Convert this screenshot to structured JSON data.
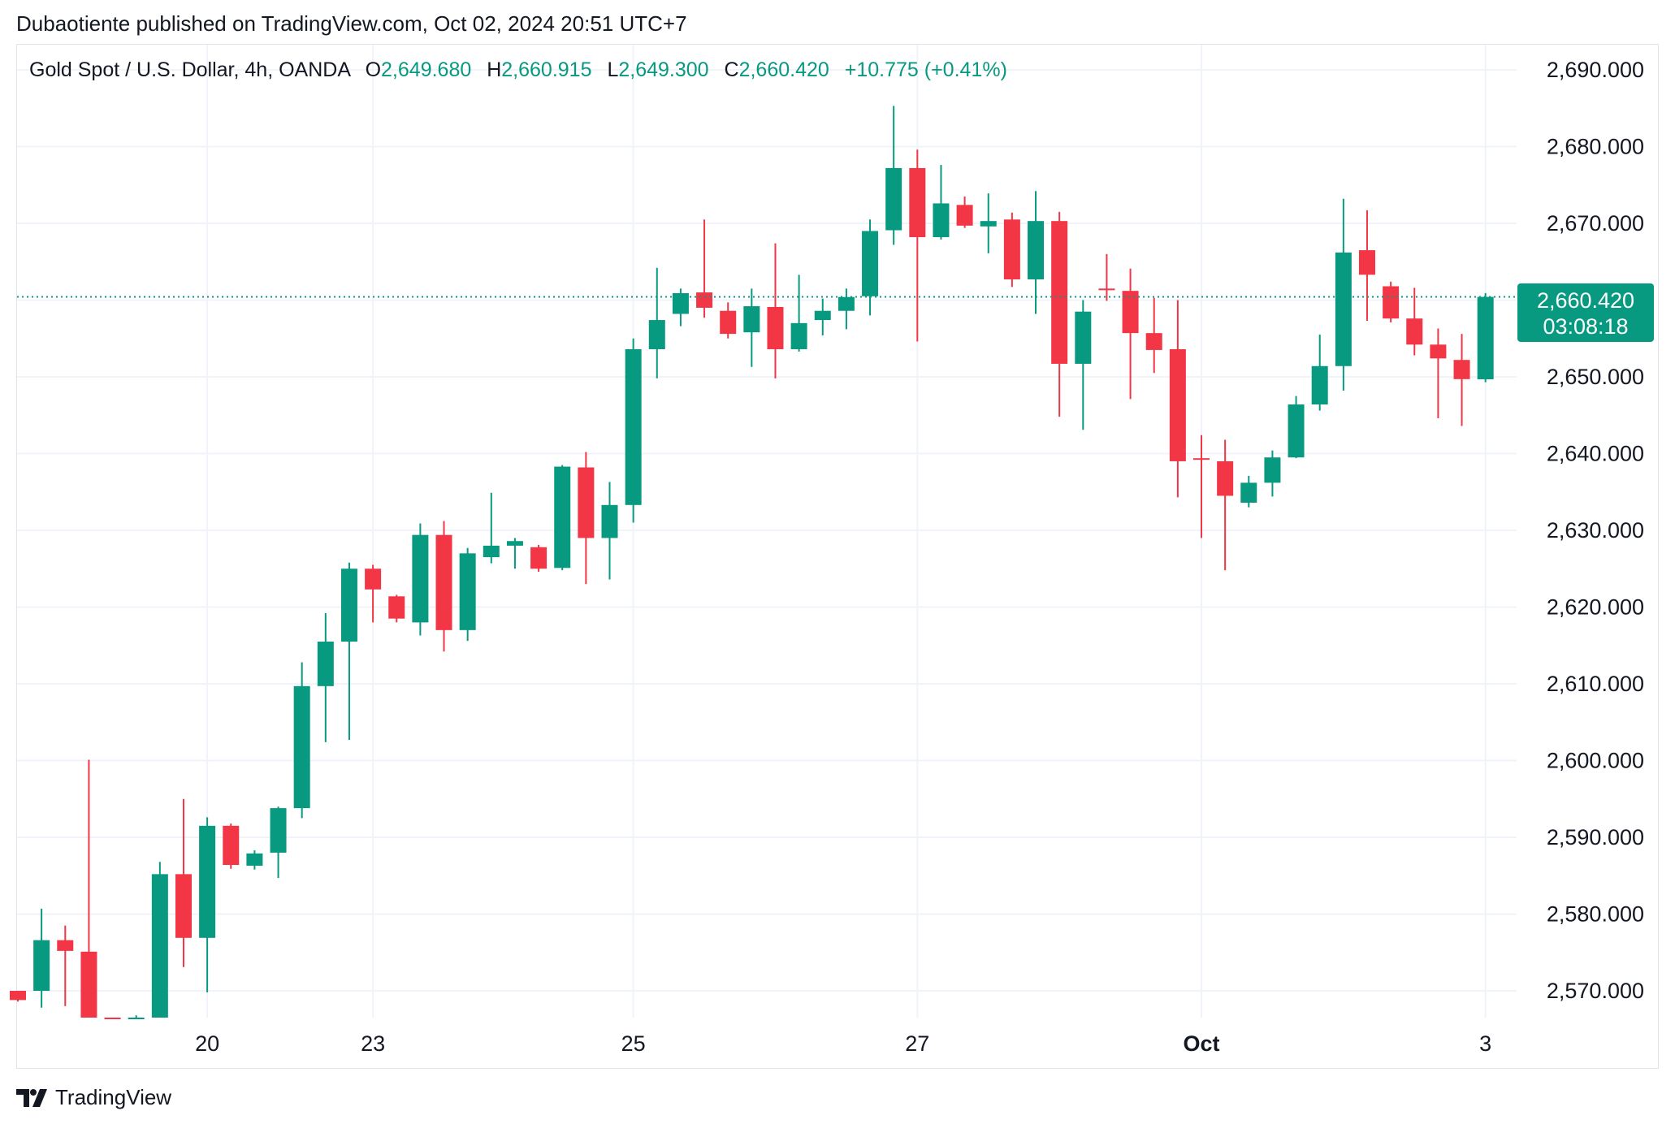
{
  "header": {
    "text": "Dubaotiente published on TradingView.com, Oct 02, 2024 20:51 UTC+7"
  },
  "legend": {
    "symbol": "Gold Spot / U.S. Dollar, 4h, OANDA",
    "o_label": "O",
    "o_value": "2,649.680",
    "h_label": "H",
    "h_value": "2,660.915",
    "l_label": "L",
    "l_value": "2,649.300",
    "c_label": "C",
    "c_value": "2,660.420",
    "change": "+10.775 (+0.41%)"
  },
  "price_tag": {
    "price": "2,660.420",
    "countdown": "03:08:18"
  },
  "footer": {
    "brand": "TradingView"
  },
  "colors": {
    "up": "#089981",
    "down": "#f23645",
    "grid": "#f0f3fa",
    "text": "#131722"
  },
  "chart_data": {
    "type": "candlestick",
    "interval": "4h",
    "ylim": [
      2564,
      2696
    ],
    "y_ticks": [
      "2,690.000",
      "2,680.000",
      "2,670.000",
      "2,660.000",
      "2,650.000",
      "2,640.000",
      "2,630.000",
      "2,620.000",
      "2,610.000",
      "2,600.000",
      "2,590.000",
      "2,580.000",
      "2,570.000"
    ],
    "y_tick_values": [
      2690,
      2680,
      2670,
      2660,
      2650,
      2640,
      2630,
      2620,
      2610,
      2600,
      2590,
      2580,
      2570
    ],
    "x_ticks": [
      {
        "label": "20",
        "index": 8,
        "bold": false
      },
      {
        "label": "23",
        "index": 15,
        "bold": false
      },
      {
        "label": "25",
        "index": 26,
        "bold": false
      },
      {
        "label": "27",
        "index": 38,
        "bold": false
      },
      {
        "label": "Oct",
        "index": 50,
        "bold": true
      },
      {
        "label": "3",
        "index": 62,
        "bold": false
      }
    ],
    "last_price": 2660.42,
    "candles": [
      {
        "o": 2570.0,
        "h": 2570.0,
        "l": 2568.6,
        "c": 2568.8
      },
      {
        "o": 2570.0,
        "h": 2580.7,
        "l": 2567.8,
        "c": 2576.6
      },
      {
        "o": 2576.6,
        "h": 2578.5,
        "l": 2568.0,
        "c": 2575.2
      },
      {
        "o": 2575.1,
        "h": 2600.1,
        "l": 2564.0,
        "c": 2564.0
      },
      {
        "o": 2566.0,
        "h": 2566.5,
        "l": 2564.0,
        "c": 2564.0
      },
      {
        "o": 2564.0,
        "h": 2566.8,
        "l": 2564.0,
        "c": 2566.2
      },
      {
        "o": 2564.0,
        "h": 2586.8,
        "l": 2564.0,
        "c": 2585.2
      },
      {
        "o": 2585.2,
        "h": 2595.0,
        "l": 2573.1,
        "c": 2576.9
      },
      {
        "o": 2576.9,
        "h": 2592.6,
        "l": 2569.8,
        "c": 2591.5
      },
      {
        "o": 2591.5,
        "h": 2591.8,
        "l": 2585.9,
        "c": 2586.4
      },
      {
        "o": 2586.3,
        "h": 2588.3,
        "l": 2585.8,
        "c": 2587.9
      },
      {
        "o": 2588.0,
        "h": 2594.0,
        "l": 2584.7,
        "c": 2593.8
      },
      {
        "o": 2593.8,
        "h": 2612.8,
        "l": 2592.5,
        "c": 2609.7
      },
      {
        "o": 2609.7,
        "h": 2619.2,
        "l": 2602.4,
        "c": 2615.5
      },
      {
        "o": 2615.5,
        "h": 2625.8,
        "l": 2602.7,
        "c": 2625.0
      },
      {
        "o": 2625.0,
        "h": 2625.5,
        "l": 2618.0,
        "c": 2622.3
      },
      {
        "o": 2621.4,
        "h": 2621.6,
        "l": 2618.0,
        "c": 2618.5
      },
      {
        "o": 2618.0,
        "h": 2630.9,
        "l": 2616.3,
        "c": 2629.4
      },
      {
        "o": 2629.4,
        "h": 2631.2,
        "l": 2614.2,
        "c": 2617.0
      },
      {
        "o": 2617.0,
        "h": 2627.7,
        "l": 2615.6,
        "c": 2627.0
      },
      {
        "o": 2626.5,
        "h": 2634.9,
        "l": 2625.7,
        "c": 2628.0
      },
      {
        "o": 2628.0,
        "h": 2629.0,
        "l": 2625.0,
        "c": 2628.6
      },
      {
        "o": 2627.8,
        "h": 2628.1,
        "l": 2624.6,
        "c": 2625.0
      },
      {
        "o": 2625.1,
        "h": 2638.5,
        "l": 2624.8,
        "c": 2638.3
      },
      {
        "o": 2638.2,
        "h": 2640.2,
        "l": 2623.0,
        "c": 2629.0
      },
      {
        "o": 2629.0,
        "h": 2636.3,
        "l": 2623.6,
        "c": 2633.3
      },
      {
        "o": 2633.3,
        "h": 2655.0,
        "l": 2631.0,
        "c": 2653.6
      },
      {
        "o": 2653.6,
        "h": 2664.2,
        "l": 2649.8,
        "c": 2657.4
      },
      {
        "o": 2658.2,
        "h": 2661.5,
        "l": 2656.6,
        "c": 2660.9
      },
      {
        "o": 2661.0,
        "h": 2670.5,
        "l": 2657.7,
        "c": 2659.0
      },
      {
        "o": 2658.6,
        "h": 2659.7,
        "l": 2655.0,
        "c": 2655.6
      },
      {
        "o": 2655.8,
        "h": 2661.5,
        "l": 2651.3,
        "c": 2659.2
      },
      {
        "o": 2659.1,
        "h": 2667.4,
        "l": 2649.8,
        "c": 2653.6
      },
      {
        "o": 2653.6,
        "h": 2663.3,
        "l": 2653.3,
        "c": 2657.0
      },
      {
        "o": 2657.4,
        "h": 2660.2,
        "l": 2655.4,
        "c": 2658.6
      },
      {
        "o": 2658.6,
        "h": 2661.5,
        "l": 2656.2,
        "c": 2660.4
      },
      {
        "o": 2660.5,
        "h": 2670.5,
        "l": 2658.0,
        "c": 2669.0
      },
      {
        "o": 2669.1,
        "h": 2685.3,
        "l": 2667.2,
        "c": 2677.2
      },
      {
        "o": 2677.2,
        "h": 2679.6,
        "l": 2654.6,
        "c": 2668.2
      },
      {
        "o": 2668.2,
        "h": 2677.6,
        "l": 2667.9,
        "c": 2672.6
      },
      {
        "o": 2672.4,
        "h": 2673.5,
        "l": 2669.4,
        "c": 2669.7
      },
      {
        "o": 2669.6,
        "h": 2673.9,
        "l": 2666.1,
        "c": 2670.3
      },
      {
        "o": 2670.5,
        "h": 2671.4,
        "l": 2661.7,
        "c": 2662.7
      },
      {
        "o": 2662.7,
        "h": 2674.2,
        "l": 2658.2,
        "c": 2670.3
      },
      {
        "o": 2670.3,
        "h": 2671.5,
        "l": 2644.8,
        "c": 2651.7
      },
      {
        "o": 2651.7,
        "h": 2660.0,
        "l": 2643.1,
        "c": 2658.5
      },
      {
        "o": 2661.5,
        "h": 2666.0,
        "l": 2659.9,
        "c": 2661.3
      },
      {
        "o": 2661.2,
        "h": 2664.1,
        "l": 2647.1,
        "c": 2655.7
      },
      {
        "o": 2655.7,
        "h": 2660.3,
        "l": 2650.5,
        "c": 2653.5
      },
      {
        "o": 2653.6,
        "h": 2660.0,
        "l": 2634.3,
        "c": 2639.0
      },
      {
        "o": 2639.4,
        "h": 2642.4,
        "l": 2629.0,
        "c": 2639.3
      },
      {
        "o": 2639.0,
        "h": 2641.8,
        "l": 2624.8,
        "c": 2634.5
      },
      {
        "o": 2633.6,
        "h": 2637.1,
        "l": 2633.0,
        "c": 2636.2
      },
      {
        "o": 2636.2,
        "h": 2640.4,
        "l": 2634.4,
        "c": 2639.5
      },
      {
        "o": 2639.5,
        "h": 2647.5,
        "l": 2639.4,
        "c": 2646.4
      },
      {
        "o": 2646.4,
        "h": 2655.5,
        "l": 2645.6,
        "c": 2651.4
      },
      {
        "o": 2651.4,
        "h": 2673.2,
        "l": 2648.2,
        "c": 2666.2
      },
      {
        "o": 2666.5,
        "h": 2671.7,
        "l": 2657.3,
        "c": 2663.3
      },
      {
        "o": 2661.8,
        "h": 2662.4,
        "l": 2657.1,
        "c": 2657.6
      },
      {
        "o": 2657.6,
        "h": 2661.6,
        "l": 2652.8,
        "c": 2654.2
      },
      {
        "o": 2654.2,
        "h": 2656.3,
        "l": 2644.6,
        "c": 2652.4
      },
      {
        "o": 2652.2,
        "h": 2655.6,
        "l": 2643.6,
        "c": 2649.7
      },
      {
        "o": 2649.68,
        "h": 2660.915,
        "l": 2649.3,
        "c": 2660.42
      }
    ]
  }
}
